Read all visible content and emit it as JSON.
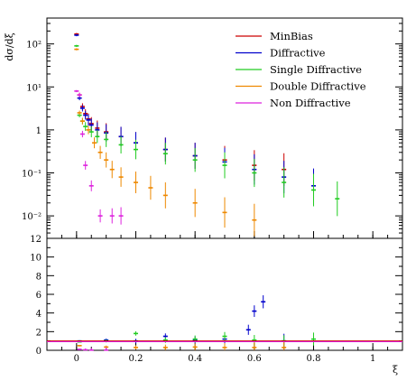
{
  "chart_data": {
    "type": "scatter",
    "ylabel": "dσ/dξ",
    "xlabel": "ξ",
    "x_ticks": [
      "0",
      "0.2",
      "0.4",
      "0.6",
      "0.8",
      "1"
    ],
    "top_panel": {
      "y_scale": "log",
      "ylim": [
        0.003,
        400
      ],
      "y_ticks": [
        "10⁻²",
        "10⁻¹",
        "1",
        "10¹",
        "10²"
      ],
      "legend_position": "top-right",
      "series": [
        {
          "name": "MinBias",
          "color": "#cc0000",
          "x": [
            0.0,
            0.01,
            0.02,
            0.03,
            0.04,
            0.05,
            0.07,
            0.1,
            0.15,
            0.2,
            0.3,
            0.4,
            0.5,
            0.6,
            0.7
          ],
          "y": [
            170,
            6.5,
            3.5,
            2.4,
            1.8,
            1.4,
            1.1,
            0.9,
            0.7,
            0.5,
            0.35,
            0.25,
            0.2,
            0.15,
            0.12
          ]
        },
        {
          "name": "Diffractive",
          "color": "#0000cc",
          "x": [
            0.0,
            0.01,
            0.02,
            0.03,
            0.04,
            0.05,
            0.07,
            0.1,
            0.15,
            0.2,
            0.3,
            0.4,
            0.5,
            0.6,
            0.7,
            0.8
          ],
          "y": [
            160,
            5.5,
            3.2,
            2.2,
            1.7,
            1.3,
            1.0,
            0.85,
            0.7,
            0.5,
            0.35,
            0.25,
            0.18,
            0.12,
            0.08,
            0.05
          ]
        },
        {
          "name": "Single Diffractive",
          "color": "#22cc22",
          "x": [
            0.0,
            0.01,
            0.02,
            0.03,
            0.05,
            0.07,
            0.1,
            0.15,
            0.2,
            0.3,
            0.4,
            0.5,
            0.6,
            0.7,
            0.8,
            0.88
          ],
          "y": [
            90,
            2.2,
            1.6,
            1.2,
            0.9,
            0.7,
            0.6,
            0.45,
            0.35,
            0.28,
            0.2,
            0.15,
            0.1,
            0.06,
            0.04,
            0.025
          ]
        },
        {
          "name": "Double Diffractive",
          "color": "#ee8800",
          "x": [
            0.0,
            0.01,
            0.02,
            0.04,
            0.06,
            0.08,
            0.1,
            0.12,
            0.15,
            0.2,
            0.25,
            0.3,
            0.4,
            0.5,
            0.6
          ],
          "y": [
            75,
            2.5,
            1.6,
            1.0,
            0.5,
            0.3,
            0.2,
            0.12,
            0.08,
            0.06,
            0.045,
            0.03,
            0.02,
            0.012,
            0.008
          ]
        },
        {
          "name": "Non Diffractive",
          "color": "#dd22dd",
          "x": [
            0.0,
            0.01,
            0.02,
            0.03,
            0.05,
            0.08,
            0.12,
            0.15
          ],
          "y": [
            8,
            6.5,
            0.8,
            0.15,
            0.05,
            0.01,
            0.01,
            0.01
          ]
        }
      ]
    },
    "bottom_panel": {
      "ylim": [
        0,
        12
      ],
      "y_ticks": [
        "0",
        "2",
        "4",
        "6",
        "8",
        "10",
        "12"
      ],
      "reference_line": 1,
      "series": [
        {
          "name": "Diffractive",
          "color": "#0000cc",
          "x": [
            0.01,
            0.1,
            0.2,
            0.3,
            0.4,
            0.5,
            0.58,
            0.6,
            0.63,
            0.7
          ],
          "y": [
            1,
            1.1,
            1.0,
            1.5,
            1.1,
            1.2,
            2.2,
            4.2,
            5.2,
            1.0
          ]
        },
        {
          "name": "Single Diffractive",
          "color": "#22cc22",
          "x": [
            0.01,
            0.1,
            0.2,
            0.3,
            0.4,
            0.5,
            0.6,
            0.7,
            0.8
          ],
          "y": [
            0.9,
            1.0,
            1.8,
            1.1,
            1.2,
            1.5,
            1.1,
            1.0,
            1.2
          ]
        },
        {
          "name": "Double Diffractive",
          "color": "#ee8800",
          "x": [
            0.01,
            0.1,
            0.2,
            0.3,
            0.4,
            0.5,
            0.6,
            0.7
          ],
          "y": [
            0.5,
            0.35,
            0.3,
            0.3,
            0.35,
            0.3,
            0.3,
            0.3
          ]
        },
        {
          "name": "Non Diffractive",
          "color": "#dd22dd",
          "x": [
            0.01,
            0.03,
            0.05,
            0.1
          ],
          "y": [
            0.1,
            0.05,
            0.02,
            0.02
          ]
        }
      ]
    }
  }
}
